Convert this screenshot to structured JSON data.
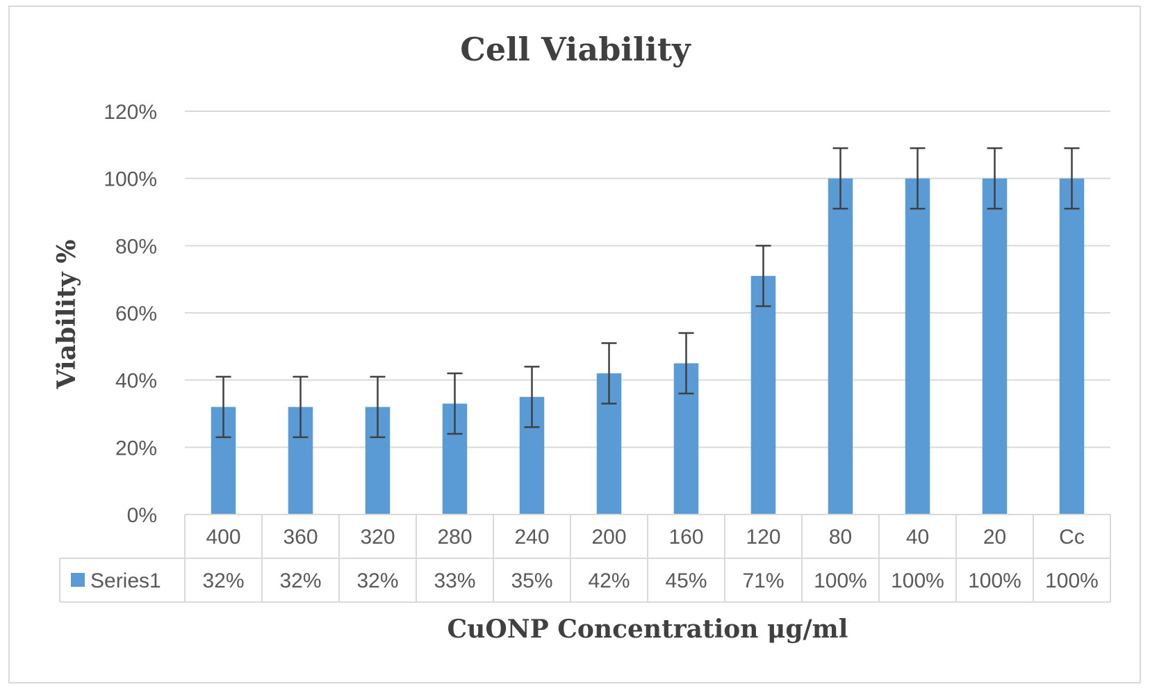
{
  "chart_data": {
    "type": "bar",
    "title": "Cell Viability",
    "xlabel": "CuONP  Concentration  μg/ml",
    "ylabel": "Viability  %",
    "categories": [
      "400",
      "360",
      "320",
      "280",
      "240",
      "200",
      "160",
      "120",
      "80",
      "40",
      "20",
      "Cc"
    ],
    "series": [
      {
        "name": "Series1",
        "values": [
          0.32,
          0.32,
          0.32,
          0.33,
          0.35,
          0.42,
          0.45,
          0.71,
          1.0,
          1.0,
          1.0,
          1.0
        ],
        "value_labels": [
          "32%",
          "32%",
          "32%",
          "33%",
          "35%",
          "42%",
          "45%",
          "71%",
          "100%",
          "100%",
          "100%",
          "100%"
        ],
        "error": [
          0.09,
          0.09,
          0.09,
          0.09,
          0.09,
          0.09,
          0.09,
          0.09,
          0.09,
          0.09,
          0.09,
          0.09
        ],
        "color": "#5b9bd5"
      }
    ],
    "ylim": [
      0,
      1.2
    ],
    "yticks": [
      0,
      0.2,
      0.4,
      0.6,
      0.8,
      1.0,
      1.2
    ],
    "ytick_labels": [
      "0%",
      "20%",
      "40%",
      "60%",
      "80%",
      "100%",
      "120%"
    ],
    "grid": true,
    "legend": "data-table-left",
    "data_table": true
  }
}
